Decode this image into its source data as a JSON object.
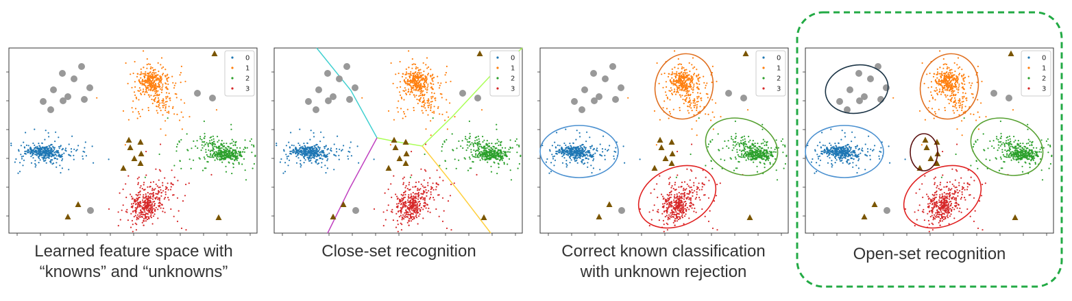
{
  "legend": [
    "0",
    "1",
    "2",
    "3"
  ],
  "colors": {
    "class0": "#1f77b4",
    "class1": "#ff7f0e",
    "class2": "#2ca02c",
    "class3": "#d62728",
    "unknown_circle": "#999999",
    "unknown_triangle": "#7a5500",
    "highlight_border": "#22aa44",
    "boundary_0_1": "#40d0d0",
    "boundary_1_2": "#aaff55",
    "boundary_2_3": "#ffd040",
    "boundary_3_0": "#c040c0",
    "ellipse_blue": "#4a90d0",
    "ellipse_orange": "#e07020",
    "ellipse_green": "#55a030",
    "ellipse_red": "#e02020",
    "ellipse_dark": "#1a3345",
    "ellipse_brown": "#5a1010"
  },
  "panels": [
    {
      "caption": [
        "Learned feature space with",
        "“knowns” and “unknowns”"
      ]
    },
    {
      "caption": [
        "Close-set recognition"
      ]
    },
    {
      "caption": [
        "Correct known classification",
        "with unknown rejection"
      ]
    },
    {
      "caption": [
        "Open-set recognition"
      ]
    }
  ]
}
